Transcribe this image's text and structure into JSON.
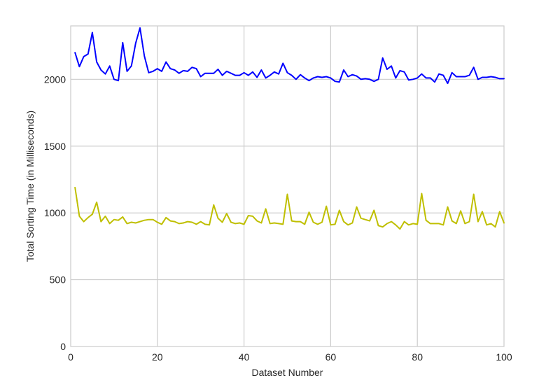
{
  "chart_data": {
    "type": "line",
    "title": "",
    "xlabel": "Dataset Number",
    "ylabel": "Total Sorting Time (in Milliseconds)",
    "xlim": [
      0,
      100
    ],
    "ylim": [
      0,
      2400
    ],
    "xticks": [
      0,
      20,
      40,
      60,
      80,
      100
    ],
    "yticks": [
      0,
      500,
      1000,
      1500,
      2000
    ],
    "xtick_labels": [
      "0",
      "20",
      "40",
      "60",
      "80",
      "100"
    ],
    "ytick_labels": [
      "0",
      "500",
      "1000",
      "1500",
      "2000"
    ],
    "grid": true,
    "legend": "none",
    "x": [
      1,
      2,
      3,
      4,
      5,
      6,
      7,
      8,
      9,
      10,
      11,
      12,
      13,
      14,
      15,
      16,
      17,
      18,
      19,
      20,
      21,
      22,
      23,
      24,
      25,
      26,
      27,
      28,
      29,
      30,
      31,
      32,
      33,
      34,
      35,
      36,
      37,
      38,
      39,
      40,
      41,
      42,
      43,
      44,
      45,
      46,
      47,
      48,
      49,
      50,
      51,
      52,
      53,
      54,
      55,
      56,
      57,
      58,
      59,
      60,
      61,
      62,
      63,
      64,
      65,
      66,
      67,
      68,
      69,
      70,
      71,
      72,
      73,
      74,
      75,
      76,
      77,
      78,
      79,
      80,
      81,
      82,
      83,
      84,
      85,
      86,
      87,
      88,
      89,
      90,
      91,
      92,
      93,
      94,
      95,
      96,
      97,
      98,
      99,
      100
    ],
    "series": [
      {
        "color": "#0000ff",
        "values": [
          2200,
          2095,
          2170,
          2190,
          2350,
          2130,
          2070,
          2040,
          2100,
          2000,
          1990,
          2275,
          2060,
          2100,
          2270,
          2385,
          2175,
          2050,
          2060,
          2080,
          2060,
          2130,
          2080,
          2070,
          2045,
          2065,
          2060,
          2090,
          2080,
          2020,
          2045,
          2045,
          2045,
          2075,
          2030,
          2060,
          2045,
          2030,
          2030,
          2050,
          2030,
          2055,
          2015,
          2070,
          2010,
          2030,
          2055,
          2040,
          2120,
          2050,
          2030,
          2000,
          2035,
          2010,
          1990,
          2010,
          2020,
          2015,
          2020,
          2010,
          1985,
          1980,
          2070,
          2020,
          2035,
          2025,
          2000,
          2005,
          2000,
          1985,
          2000,
          2160,
          2075,
          2100,
          2010,
          2065,
          2055,
          1995,
          2000,
          2010,
          2040,
          2010,
          2010,
          1980,
          2040,
          2030,
          1970,
          2050,
          2020,
          2020,
          2020,
          2030,
          2090,
          2000,
          2015,
          2015,
          2020,
          2015,
          2005,
          2005
        ]
      },
      {
        "color": "#bfbf00",
        "values": [
          1190,
          975,
          935,
          965,
          990,
          1080,
          935,
          975,
          920,
          950,
          945,
          970,
          920,
          930,
          925,
          935,
          945,
          950,
          950,
          930,
          915,
          965,
          940,
          935,
          920,
          925,
          935,
          930,
          915,
          935,
          915,
          910,
          1060,
          960,
          930,
          995,
          930,
          920,
          925,
          915,
          980,
          975,
          940,
          925,
          1030,
          920,
          925,
          920,
          915,
          1140,
          940,
          935,
          935,
          915,
          1005,
          930,
          915,
          930,
          1050,
          910,
          915,
          1020,
          935,
          910,
          925,
          1045,
          960,
          950,
          940,
          1020,
          905,
          895,
          920,
          935,
          910,
          880,
          935,
          910,
          920,
          915,
          1145,
          945,
          920,
          920,
          920,
          910,
          1045,
          940,
          920,
          1015,
          920,
          935,
          1140,
          935,
          1010,
          910,
          920,
          895,
          1010,
          925
        ]
      }
    ]
  }
}
